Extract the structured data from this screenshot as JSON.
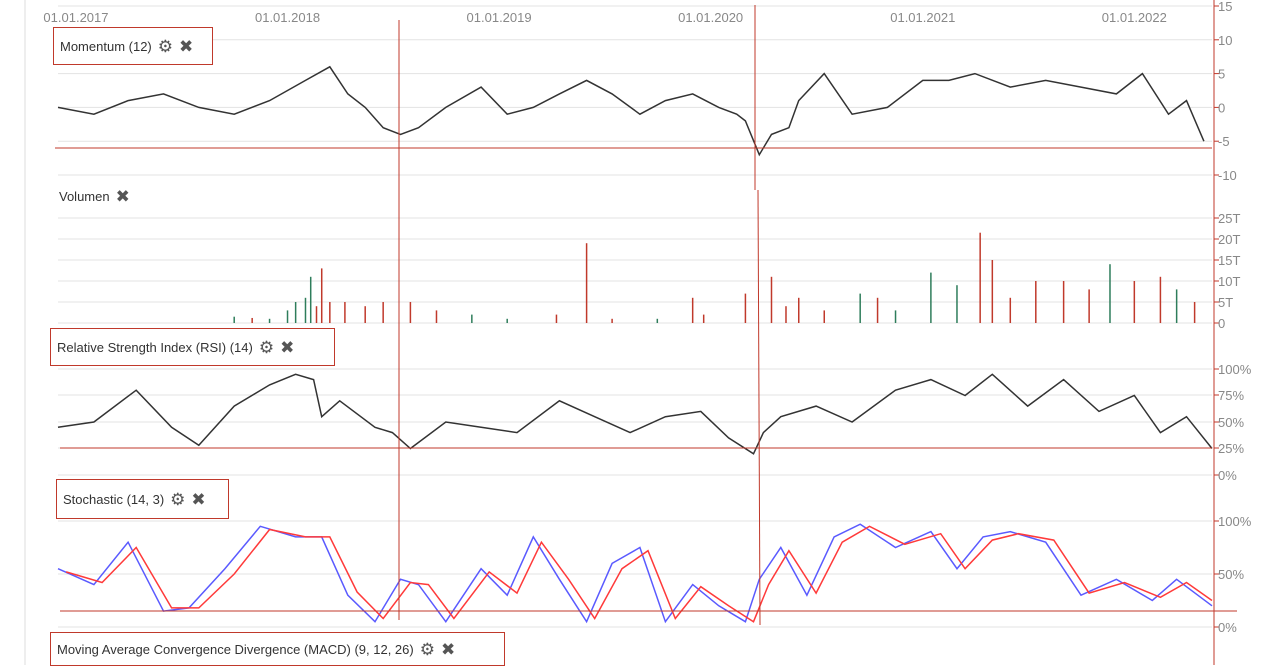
{
  "colors": {
    "line": "#333333",
    "grid": "#e3e3e3",
    "annotation": "#c0392b",
    "volume_up": "#2e7d5b",
    "volume_down": "#c0392b",
    "stoch_k": "#5a5aff",
    "stoch_d": "#ff3a3a",
    "axis_text": "#888888"
  },
  "x_axis": {
    "labels": [
      "01.01.2017",
      "01.01.2018",
      "01.01.2019",
      "01.01.2020",
      "01.01.2021",
      "01.01.2022"
    ]
  },
  "panels": {
    "momentum": {
      "title": "Momentum (12)",
      "gear": "gear-icon",
      "close": "close-icon"
    },
    "volume": {
      "title": "Volumen",
      "close": "close-icon"
    },
    "rsi": {
      "title": "Relative Strength Index (RSI) (14)",
      "gear": "gear-icon",
      "close": "close-icon"
    },
    "stochastic": {
      "title": "Stochastic (14, 3)",
      "gear": "gear-icon",
      "close": "close-icon"
    },
    "macd": {
      "title": "Moving Average Convergence Divergence (MACD) (9, 12, 26)",
      "gear": "gear-icon",
      "close": "close-icon"
    }
  },
  "chart_data": [
    {
      "type": "line",
      "name": "momentum",
      "x_range": [
        "2016-12-01",
        "2022-05-15"
      ],
      "ylim": [
        -10,
        15
      ],
      "y_ticks": [
        "15",
        "10",
        "5",
        "0",
        "-5",
        "-10"
      ],
      "grid": true,
      "x": [
        "2016-12-01",
        "2017-02-01",
        "2017-04-01",
        "2017-06-01",
        "2017-08-01",
        "2017-10-01",
        "2017-12-01",
        "2018-02-01",
        "2018-03-15",
        "2018-04-15",
        "2018-05-15",
        "2018-06-15",
        "2018-07-15",
        "2018-08-15",
        "2018-10-01",
        "2018-12-01",
        "2019-01-15",
        "2019-03-01",
        "2019-04-15",
        "2019-06-01",
        "2019-07-15",
        "2019-09-01",
        "2019-10-15",
        "2019-12-01",
        "2020-01-15",
        "2020-02-15",
        "2020-03-01",
        "2020-03-25",
        "2020-04-15",
        "2020-05-15",
        "2020-06-01",
        "2020-07-15",
        "2020-09-01",
        "2020-11-01",
        "2021-01-01",
        "2021-02-15",
        "2021-04-01",
        "2021-06-01",
        "2021-08-01",
        "2021-10-01",
        "2021-12-01",
        "2022-01-15",
        "2022-03-01",
        "2022-04-01",
        "2022-05-01"
      ],
      "y": [
        0,
        -1,
        1,
        2,
        0,
        -1,
        1,
        4,
        6,
        2,
        0,
        -3,
        -4,
        -3,
        0,
        3,
        -1,
        0,
        2,
        4,
        2,
        -1,
        1,
        2,
        0,
        -1,
        -2,
        -7,
        -4,
        -3,
        1,
        5,
        -1,
        0,
        4,
        4,
        5,
        3,
        4,
        3,
        2,
        5,
        -1,
        1,
        -5
      ]
    },
    {
      "type": "bar",
      "name": "volumen",
      "ylim": [
        0,
        25
      ],
      "y_ticks": [
        "25T",
        "20T",
        "15T",
        "10T",
        "5T",
        "0"
      ],
      "grid": true,
      "x_range": [
        "2016-12-01",
        "2022-05-15"
      ],
      "bars": [
        {
          "x": "2017-10-01",
          "v": 1.5,
          "up": true
        },
        {
          "x": "2017-11-01",
          "v": 1.2,
          "up": false
        },
        {
          "x": "2017-12-01",
          "v": 1.0,
          "up": true
        },
        {
          "x": "2018-01-01",
          "v": 3,
          "up": true
        },
        {
          "x": "2018-01-15",
          "v": 5,
          "up": true
        },
        {
          "x": "2018-02-01",
          "v": 6,
          "up": true
        },
        {
          "x": "2018-02-10",
          "v": 11,
          "up": true
        },
        {
          "x": "2018-02-20",
          "v": 4,
          "up": false
        },
        {
          "x": "2018-03-01",
          "v": 13,
          "up": false
        },
        {
          "x": "2018-03-15",
          "v": 5,
          "up": false
        },
        {
          "x": "2018-04-10",
          "v": 5,
          "up": false
        },
        {
          "x": "2018-05-15",
          "v": 4,
          "up": false
        },
        {
          "x": "2018-06-15",
          "v": 5,
          "up": false
        },
        {
          "x": "2018-08-01",
          "v": 5,
          "up": false
        },
        {
          "x": "2018-09-15",
          "v": 3,
          "up": false
        },
        {
          "x": "2018-11-15",
          "v": 2,
          "up": true
        },
        {
          "x": "2019-01-15",
          "v": 1,
          "up": true
        },
        {
          "x": "2019-04-10",
          "v": 2,
          "up": false
        },
        {
          "x": "2019-06-01",
          "v": 19,
          "up": false
        },
        {
          "x": "2019-07-15",
          "v": 1,
          "up": false
        },
        {
          "x": "2019-10-01",
          "v": 1,
          "up": true
        },
        {
          "x": "2019-12-01",
          "v": 6,
          "up": false
        },
        {
          "x": "2019-12-20",
          "v": 2,
          "up": false
        },
        {
          "x": "2020-03-01",
          "v": 7,
          "up": false
        },
        {
          "x": "2020-04-15",
          "v": 11,
          "up": false
        },
        {
          "x": "2020-05-10",
          "v": 4,
          "up": false
        },
        {
          "x": "2020-06-01",
          "v": 6,
          "up": false
        },
        {
          "x": "2020-07-15",
          "v": 3,
          "up": false
        },
        {
          "x": "2020-09-15",
          "v": 7,
          "up": true
        },
        {
          "x": "2020-10-15",
          "v": 6,
          "up": false
        },
        {
          "x": "2020-11-15",
          "v": 3,
          "up": true
        },
        {
          "x": "2021-01-15",
          "v": 12,
          "up": true
        },
        {
          "x": "2021-03-01",
          "v": 9,
          "up": true
        },
        {
          "x": "2021-04-10",
          "v": 21.5,
          "up": false
        },
        {
          "x": "2021-05-01",
          "v": 15,
          "up": false
        },
        {
          "x": "2021-06-01",
          "v": 6,
          "up": false
        },
        {
          "x": "2021-07-15",
          "v": 10,
          "up": false
        },
        {
          "x": "2021-09-01",
          "v": 10,
          "up": false
        },
        {
          "x": "2021-10-15",
          "v": 8,
          "up": false
        },
        {
          "x": "2021-11-20",
          "v": 14,
          "up": true
        },
        {
          "x": "2022-01-01",
          "v": 10,
          "up": false
        },
        {
          "x": "2022-02-15",
          "v": 11,
          "up": false
        },
        {
          "x": "2022-03-15",
          "v": 8,
          "up": true
        },
        {
          "x": "2022-04-15",
          "v": 5,
          "up": false
        }
      ]
    },
    {
      "type": "line",
      "name": "rsi",
      "ylim": [
        0,
        100
      ],
      "y_ticks": [
        "100%",
        "75%",
        "50%",
        "25%",
        "0%"
      ],
      "grid": true,
      "x_range": [
        "2016-12-01",
        "2022-05-15"
      ],
      "x": [
        "2016-12-01",
        "2017-02-01",
        "2017-04-15",
        "2017-06-15",
        "2017-08-01",
        "2017-10-01",
        "2017-12-01",
        "2018-01-15",
        "2018-02-15",
        "2018-03-01",
        "2018-04-01",
        "2018-06-01",
        "2018-07-01",
        "2018-08-01",
        "2018-10-01",
        "2018-12-01",
        "2019-02-01",
        "2019-04-15",
        "2019-06-15",
        "2019-08-15",
        "2019-10-15",
        "2019-12-15",
        "2020-02-01",
        "2020-03-15",
        "2020-04-01",
        "2020-05-01",
        "2020-07-01",
        "2020-09-01",
        "2020-11-15",
        "2021-01-15",
        "2021-03-15",
        "2021-05-01",
        "2021-07-01",
        "2021-09-01",
        "2021-11-01",
        "2022-01-01",
        "2022-02-15",
        "2022-04-01",
        "2022-05-15"
      ],
      "y": [
        45,
        50,
        80,
        45,
        28,
        65,
        85,
        95,
        90,
        55,
        70,
        45,
        40,
        25,
        50,
        45,
        40,
        70,
        55,
        40,
        55,
        60,
        35,
        20,
        40,
        55,
        65,
        50,
        80,
        90,
        75,
        95,
        65,
        90,
        60,
        75,
        40,
        55,
        25
      ]
    },
    {
      "type": "line",
      "name": "stochastic",
      "ylim": [
        0,
        100
      ],
      "y_ticks": [
        "100%",
        "50%",
        "0%"
      ],
      "grid": true,
      "x_range": [
        "2016-12-01",
        "2022-05-15"
      ],
      "series": [
        {
          "key": "k",
          "x": [
            "2016-12-01",
            "2017-02-01",
            "2017-04-01",
            "2017-06-01",
            "2017-07-15",
            "2017-09-15",
            "2017-11-15",
            "2018-01-15",
            "2018-03-01",
            "2018-04-15",
            "2018-06-01",
            "2018-07-15",
            "2018-08-15",
            "2018-10-01",
            "2018-12-01",
            "2019-01-15",
            "2019-03-01",
            "2019-04-15",
            "2019-06-01",
            "2019-07-15",
            "2019-09-01",
            "2019-10-15",
            "2019-12-01",
            "2020-01-15",
            "2020-03-01",
            "2020-03-25",
            "2020-05-01",
            "2020-06-15",
            "2020-08-01",
            "2020-09-15",
            "2020-11-15",
            "2021-01-15",
            "2021-03-01",
            "2021-04-15",
            "2021-06-01",
            "2021-08-01",
            "2021-10-01",
            "2021-12-01",
            "2022-02-01",
            "2022-03-15",
            "2022-05-15"
          ],
          "y": [
            55,
            40,
            80,
            15,
            18,
            55,
            95,
            85,
            85,
            30,
            5,
            45,
            40,
            5,
            55,
            30,
            85,
            45,
            5,
            60,
            75,
            5,
            40,
            20,
            5,
            45,
            75,
            30,
            85,
            97,
            75,
            90,
            55,
            85,
            90,
            80,
            30,
            45,
            25,
            45,
            20
          ]
        },
        {
          "key": "d",
          "x": [
            "2016-12-15",
            "2017-02-15",
            "2017-04-15",
            "2017-06-15",
            "2017-08-01",
            "2017-10-01",
            "2017-12-01",
            "2018-02-01",
            "2018-03-15",
            "2018-05-01",
            "2018-06-15",
            "2018-08-01",
            "2018-09-01",
            "2018-10-15",
            "2018-12-15",
            "2019-02-01",
            "2019-03-15",
            "2019-05-01",
            "2019-06-15",
            "2019-08-01",
            "2019-09-15",
            "2019-11-01",
            "2019-12-15",
            "2020-02-01",
            "2020-03-15",
            "2020-04-10",
            "2020-05-15",
            "2020-07-01",
            "2020-08-15",
            "2020-10-01",
            "2020-12-01",
            "2021-02-01",
            "2021-03-15",
            "2021-05-01",
            "2021-06-15",
            "2021-08-15",
            "2021-10-15",
            "2021-12-15",
            "2022-02-15",
            "2022-04-01",
            "2022-05-15"
          ],
          "y": [
            52,
            42,
            75,
            18,
            18,
            50,
            92,
            85,
            85,
            33,
            8,
            42,
            40,
            8,
            52,
            32,
            80,
            45,
            8,
            55,
            72,
            8,
            38,
            20,
            5,
            40,
            72,
            32,
            80,
            95,
            78,
            88,
            55,
            82,
            88,
            82,
            32,
            42,
            28,
            42,
            25
          ]
        }
      ]
    },
    {
      "type": "line",
      "name": "macd"
    }
  ]
}
